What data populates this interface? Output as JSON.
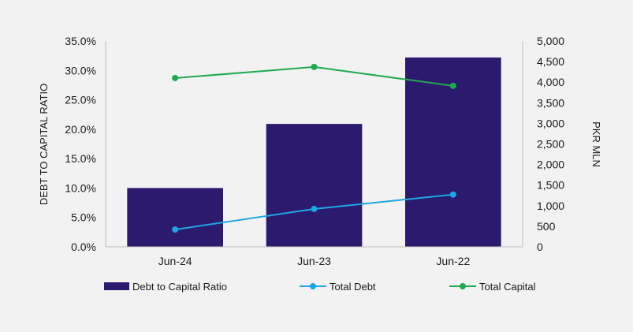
{
  "chart_data": {
    "type": "bar",
    "categories": [
      "Jun-24",
      "Jun-23",
      "Jun-22"
    ],
    "y_left": {
      "label": "DEBT TO CAPITAL RATIO",
      "ylim": [
        0,
        35
      ],
      "ticks": [
        "0.0%",
        "5.0%",
        "10.0%",
        "15.0%",
        "20.0%",
        "25.0%",
        "30.0%",
        "35.0%"
      ]
    },
    "y_right": {
      "label": "PKR MLN",
      "ylim": [
        0,
        5000
      ],
      "ticks": [
        "0",
        "500",
        "1,000",
        "1,500",
        "2,000",
        "2,500",
        "3,000",
        "3,500",
        "4,000",
        "4,500",
        "5,000"
      ]
    },
    "series": [
      {
        "name": "Debt to Capital Ratio",
        "type": "bar",
        "axis": "left",
        "color": "#2b1a6e",
        "values": [
          10.0,
          20.9,
          32.2
        ]
      },
      {
        "name": "Total Debt",
        "type": "line",
        "axis": "right",
        "color": "#1ea7e4",
        "values": [
          420,
          920,
          1270
        ]
      },
      {
        "name": "Total Capital",
        "type": "line",
        "axis": "right",
        "color": "#1faa4f",
        "values": [
          4100,
          4370,
          3910
        ]
      }
    ],
    "grid": false,
    "legend_position": "bottom"
  }
}
